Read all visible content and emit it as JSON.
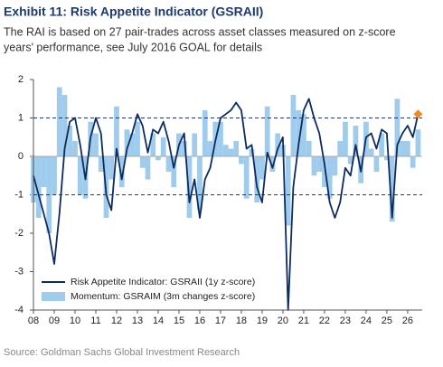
{
  "chart_data": {
    "type": "line",
    "title": "Exhibit 11: Risk Appetite Indicator (GSRAII)",
    "subtitle": [
      "The RAI is based on 27 pair-trades across asset classes measured on z-score",
      "years' performance, see July 2016 GOAL for details"
    ],
    "source": "Source: Goldman Sachs Global Investment Research",
    "x": [
      2008,
      2008.25,
      2008.5,
      2008.75,
      2009,
      2009.25,
      2009.5,
      2009.75,
      2010,
      2010.25,
      2010.5,
      2010.75,
      2011,
      2011.25,
      2011.5,
      2011.75,
      2012,
      2012.25,
      2012.5,
      2012.75,
      2013,
      2013.25,
      2013.5,
      2013.75,
      2014,
      2014.25,
      2014.5,
      2014.75,
      2015,
      2015.25,
      2015.5,
      2015.75,
      2016,
      2016.25,
      2016.5,
      2016.75,
      2017,
      2017.25,
      2017.5,
      2017.75,
      2018,
      2018.25,
      2018.5,
      2018.75,
      2019,
      2019.25,
      2019.5,
      2019.75,
      2020,
      2020.25,
      2020.5,
      2020.75,
      2021,
      2021.25,
      2021.5,
      2021.75,
      2022,
      2022.25,
      2022.5,
      2022.75,
      2023,
      2023.25,
      2023.5,
      2023.75,
      2024,
      2024.25,
      2024.5,
      2024.75,
      2025,
      2025.25,
      2025.5,
      2025.75,
      2026,
      2026.25,
      2026.5
    ],
    "series": [
      {
        "name": "Momentum: GSRAIM (3m changes z-score)",
        "kind": "bar",
        "color": "#9fcbec",
        "values": [
          -1.2,
          -1.6,
          -0.8,
          -2.0,
          -1.0,
          1.8,
          1.6,
          0.8,
          0.4,
          -1.0,
          -1.1,
          0.9,
          0.6,
          -0.4,
          -1.6,
          -0.6,
          1.3,
          -0.8,
          0.7,
          0.6,
          0.9,
          -0.3,
          -0.6,
          0.6,
          -0.1,
          0.5,
          -0.4,
          -0.8,
          0.6,
          0.4,
          -1.6,
          0.6,
          -1.4,
          1.2,
          0.4,
          0.9,
          0.9,
          0.3,
          0.2,
          0.4,
          -0.2,
          -1.1,
          0.2,
          -1.2,
          -0.6,
          1.3,
          -0.4,
          0.6,
          0.3,
          -1.8,
          1.6,
          1.2,
          1.1,
          0.4,
          -0.5,
          -0.4,
          -0.8,
          -1.1,
          -0.5,
          0.4,
          0.9,
          -0.2,
          0.8,
          -0.7,
          0.9,
          0.2,
          -0.4,
          0.6,
          -0.1,
          -1.7,
          1.5,
          0.4,
          0.4,
          -0.3,
          0.7
        ]
      },
      {
        "name": "Risk Appetite Indicator: GSRAII (1y z-score)",
        "kind": "line",
        "color": "#0d2c5e",
        "values": [
          -0.5,
          -1.0,
          -1.5,
          -2.0,
          -2.8,
          -1.5,
          0.2,
          0.9,
          1.0,
          0.3,
          -0.6,
          0.5,
          1.0,
          0.6,
          -1.0,
          -1.4,
          0.2,
          -0.6,
          0.2,
          0.6,
          1.1,
          0.8,
          0.1,
          0.7,
          0.6,
          0.9,
          0.4,
          -0.3,
          0.3,
          0.6,
          -1.2,
          -0.6,
          -1.6,
          -0.6,
          -0.3,
          0.4,
          1.0,
          1.1,
          1.2,
          1.4,
          1.2,
          0.2,
          0.3,
          -0.8,
          -1.2,
          0.1,
          -0.3,
          0.2,
          0.5,
          -4.0,
          -0.8,
          0.3,
          1.2,
          1.5,
          1.0,
          0.6,
          -0.2,
          -1.2,
          -1.6,
          -1.2,
          -0.3,
          -0.5,
          0.3,
          -0.4,
          0.5,
          0.6,
          0.2,
          0.7,
          0.6,
          -1.6,
          0.3,
          0.6,
          0.8,
          0.5,
          1.1
        ]
      }
    ],
    "latest_marker_color": "#f08a24",
    "dashed_lines": [
      1,
      -1
    ],
    "ylim": [
      -4,
      2
    ],
    "yticks": [
      -4,
      -3,
      -2,
      -1,
      0,
      1,
      2
    ],
    "xlim": [
      2008,
      2026.7
    ],
    "xticks": [
      {
        "value": 2008,
        "label": "08"
      },
      {
        "value": 2009,
        "label": "09"
      },
      {
        "value": 2010,
        "label": "10"
      },
      {
        "value": 2011,
        "label": "11"
      },
      {
        "value": 2012,
        "label": "12"
      },
      {
        "value": 2013,
        "label": "13"
      },
      {
        "value": 2014,
        "label": "14"
      },
      {
        "value": 2015,
        "label": "15"
      },
      {
        "value": 2016,
        "label": "16"
      },
      {
        "value": 2017,
        "label": "17"
      },
      {
        "value": 2018,
        "label": "18"
      },
      {
        "value": 2019,
        "label": "19"
      },
      {
        "value": 2020,
        "label": "20"
      },
      {
        "value": 2021,
        "label": "21"
      },
      {
        "value": 2022,
        "label": "22"
      },
      {
        "value": 2023,
        "label": "23"
      },
      {
        "value": 2024,
        "label": "24"
      },
      {
        "value": 2025,
        "label": "25"
      },
      {
        "value": 2026,
        "label": "26"
      }
    ]
  }
}
